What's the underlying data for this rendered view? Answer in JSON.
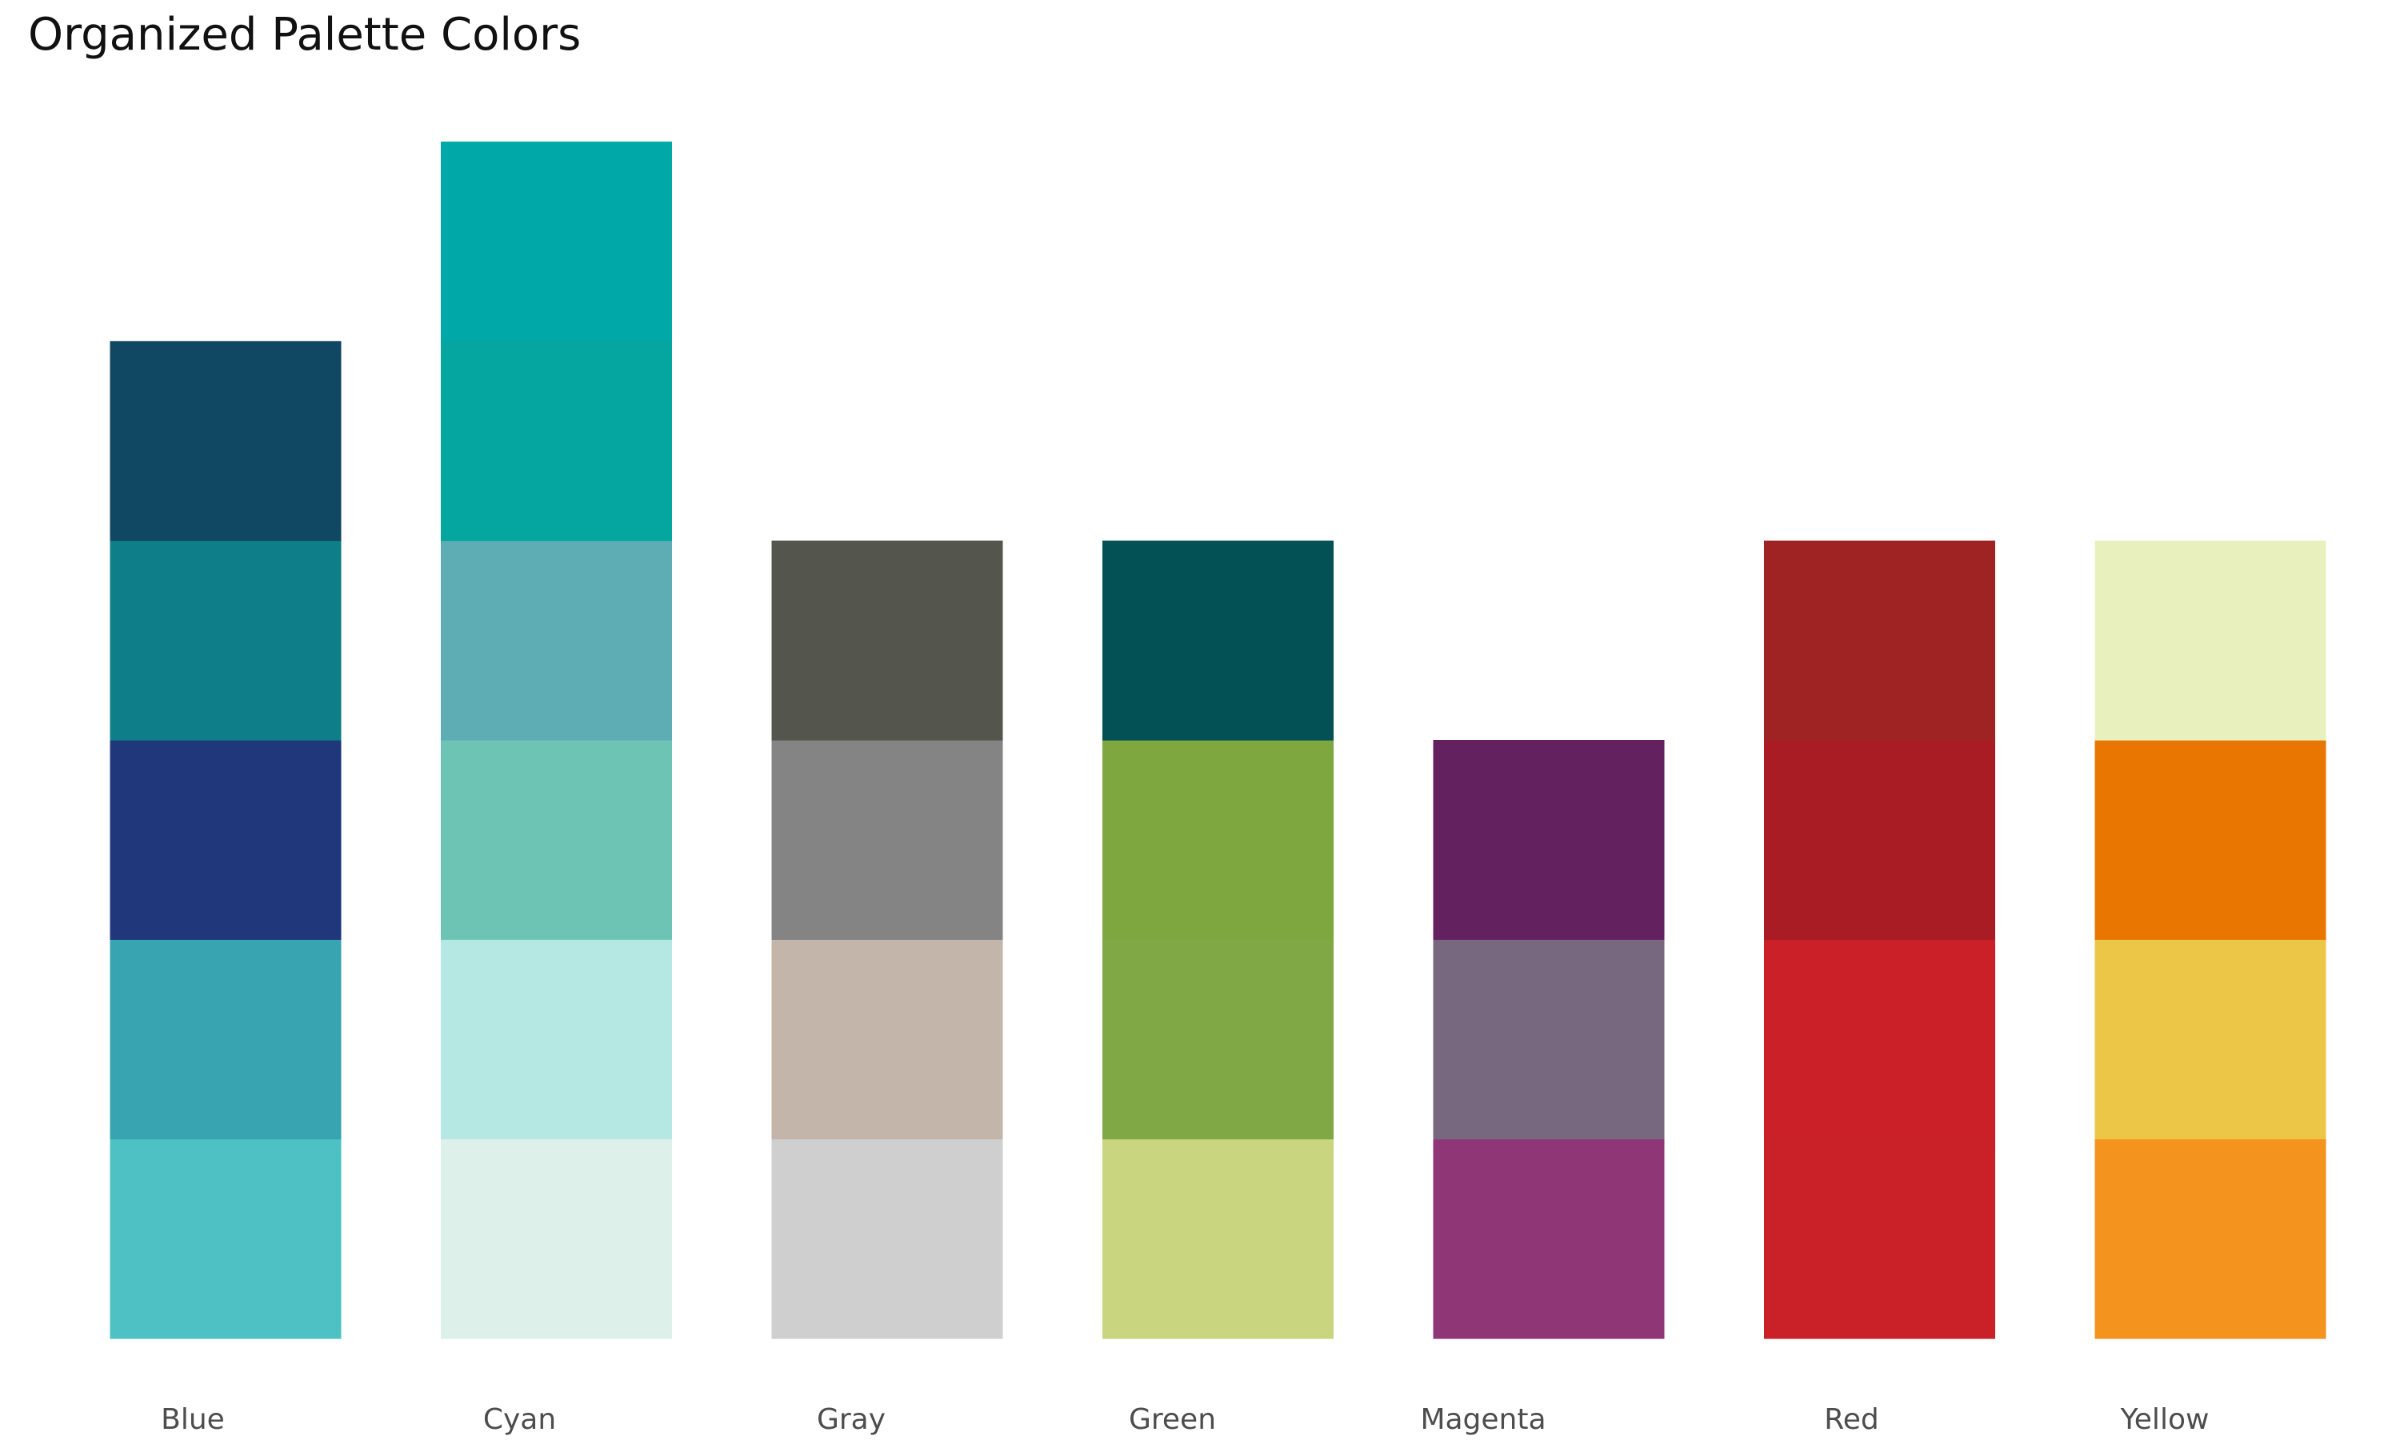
{
  "chart_data": {
    "type": "bar",
    "subtype": "stacked",
    "title": "Organized Palette Colors",
    "xlabel": "",
    "ylabel": "",
    "grid": false,
    "legend": "none",
    "axes_visible": false,
    "ylim": [
      0,
      6
    ],
    "categories": [
      "Blue",
      "Cyan",
      "Gray",
      "Green",
      "Magenta",
      "Red",
      "Yellow"
    ],
    "totals": [
      5,
      6,
      4,
      4,
      3,
      4,
      4
    ],
    "stacks": [
      {
        "category": "Blue",
        "segments": [
          {
            "value": 1,
            "color": "#4EC1C5"
          },
          {
            "value": 1,
            "color": "#38A3B1"
          },
          {
            "value": 1,
            "color": "#21377B"
          },
          {
            "value": 1,
            "color": "#0E7F88"
          },
          {
            "value": 1,
            "color": "#104762"
          }
        ]
      },
      {
        "category": "Cyan",
        "segments": [
          {
            "value": 1,
            "color": "#DDF0EA"
          },
          {
            "value": 1,
            "color": "#B5E8E2"
          },
          {
            "value": 1,
            "color": "#6DC4B4"
          },
          {
            "value": 1,
            "color": "#5FADB4"
          },
          {
            "value": 1,
            "color": "#04A69F"
          },
          {
            "value": 1,
            "color": "#00A9A7"
          }
        ]
      },
      {
        "category": "Gray",
        "segments": [
          {
            "value": 1,
            "color": "#CFCFCF"
          },
          {
            "value": 1,
            "color": "#C3B5AA"
          },
          {
            "value": 1,
            "color": "#848484"
          },
          {
            "value": 1,
            "color": "#54564D"
          }
        ]
      },
      {
        "category": "Green",
        "segments": [
          {
            "value": 1,
            "color": "#C9D57F"
          },
          {
            "value": 1,
            "color": "#80A845"
          },
          {
            "value": 1,
            "color": "#7EA740"
          },
          {
            "value": 1,
            "color": "#045155"
          }
        ]
      },
      {
        "category": "Magenta",
        "segments": [
          {
            "value": 1,
            "color": "#8F3676"
          },
          {
            "value": 1,
            "color": "#77687F"
          },
          {
            "value": 1,
            "color": "#64215F"
          }
        ]
      },
      {
        "category": "Red",
        "segments": [
          {
            "value": 1,
            "color": "#CA2028"
          },
          {
            "value": 1,
            "color": "#CC2029"
          },
          {
            "value": 1,
            "color": "#AA1C23"
          },
          {
            "value": 1,
            "color": "#A02323"
          }
        ]
      },
      {
        "category": "Yellow",
        "segments": [
          {
            "value": 1,
            "color": "#F5931F"
          },
          {
            "value": 1,
            "color": "#EBC647"
          },
          {
            "value": 1,
            "color": "#EA7602"
          },
          {
            "value": 1,
            "color": "#E8F1BD"
          }
        ]
      }
    ]
  }
}
